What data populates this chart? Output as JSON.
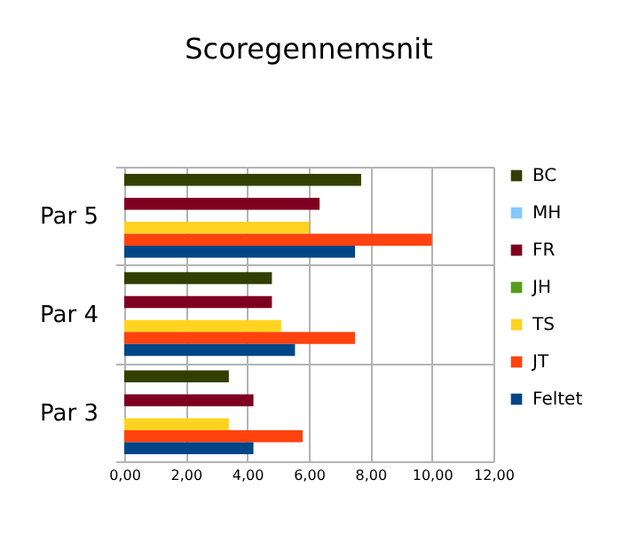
{
  "chart_data": {
    "type": "bar",
    "orientation": "horizontal",
    "title": "Scoregennemsnit",
    "categories": [
      "Par 5",
      "Par 4",
      "Par 3"
    ],
    "series": [
      {
        "name": "BC",
        "color": "#333f00",
        "values": [
          7.7,
          4.8,
          3.4
        ]
      },
      {
        "name": "MH",
        "color": "#83caff",
        "values": [
          null,
          null,
          null
        ]
      },
      {
        "name": "FR",
        "color": "#7e0021",
        "values": [
          6.35,
          4.8,
          4.2
        ]
      },
      {
        "name": "JH",
        "color": "#579d1c",
        "values": [
          null,
          null,
          null
        ]
      },
      {
        "name": "TS",
        "color": "#ffd320",
        "values": [
          6.0,
          5.1,
          3.4
        ]
      },
      {
        "name": "JT",
        "color": "#ff420e",
        "values": [
          10.0,
          7.5,
          5.8
        ]
      },
      {
        "name": "Feltet",
        "color": "#004586",
        "values": [
          7.5,
          5.55,
          4.2
        ]
      }
    ],
    "xlim": [
      0,
      12
    ],
    "xticks": [
      {
        "value": 0,
        "label": "0,00"
      },
      {
        "value": 2,
        "label": "2,00"
      },
      {
        "value": 4,
        "label": "4,00"
      },
      {
        "value": 6,
        "label": "6,00"
      },
      {
        "value": 8,
        "label": "8,00"
      },
      {
        "value": 10,
        "label": "10,00"
      },
      {
        "value": 12,
        "label": "12,00"
      }
    ],
    "grid": true,
    "legend": "right"
  }
}
